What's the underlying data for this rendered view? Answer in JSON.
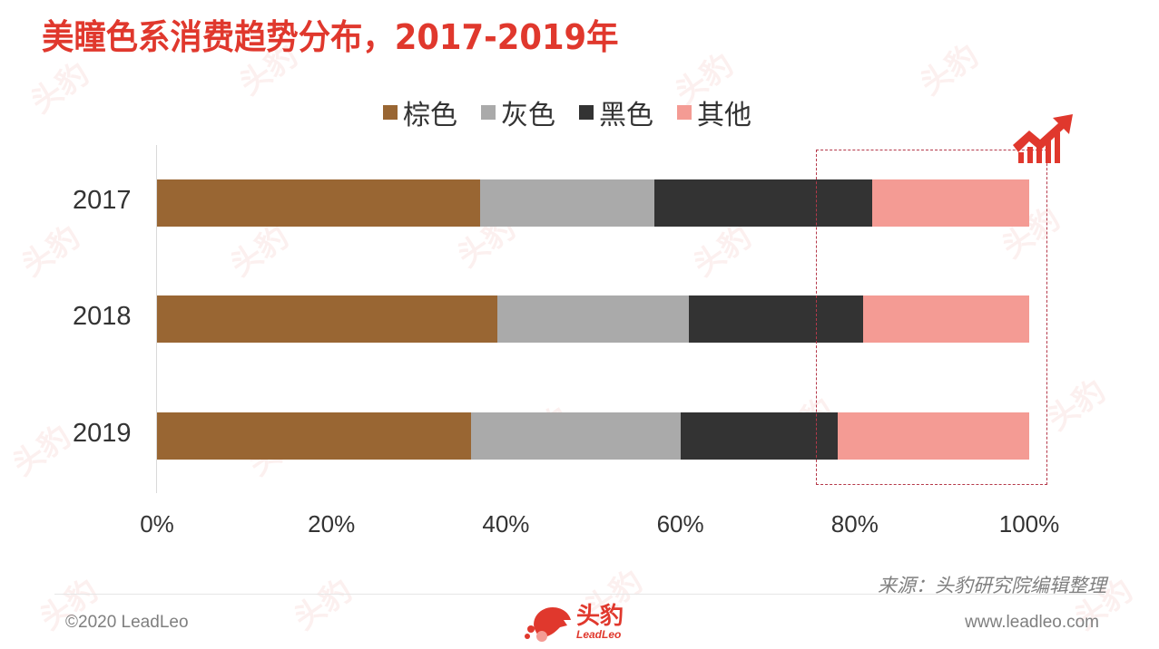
{
  "title": "美瞳色系消费趋势分布，2017-2019年",
  "legend": [
    {
      "label": "棕色",
      "color": "#996633"
    },
    {
      "label": "灰色",
      "color": "#aaaaaa"
    },
    {
      "label": "黑色",
      "color": "#333333"
    },
    {
      "label": "其他",
      "color": "#f49b94"
    }
  ],
  "x_ticks": [
    "0%",
    "20%",
    "40%",
    "60%",
    "80%",
    "100%"
  ],
  "years": [
    "2017",
    "2018",
    "2019"
  ],
  "source": "来源：头豹研究院编辑整理",
  "footer": {
    "copyright": "©2020 LeadLeo",
    "website": "www.leadleo.com",
    "logo_cn": "头豹",
    "logo_en": "LeadLeo"
  },
  "watermark_text": "头豹",
  "icons": {
    "trend": "trend-up-chart-icon",
    "logo": "leopard-logo-icon"
  },
  "colors": {
    "title": "#e0382d",
    "highlight_border": "#b5394a"
  },
  "chart_data": {
    "type": "bar",
    "orientation": "horizontal",
    "stacked": "percent",
    "title": "美瞳色系消费趋势分布，2017-2019年",
    "categories": [
      "2017",
      "2018",
      "2019"
    ],
    "series": [
      {
        "name": "棕色",
        "color": "#996633",
        "values": [
          37,
          39,
          36
        ]
      },
      {
        "name": "灰色",
        "color": "#aaaaaa",
        "values": [
          20,
          22,
          24
        ]
      },
      {
        "name": "黑色",
        "color": "#333333",
        "values": [
          25,
          20,
          18
        ]
      },
      {
        "name": "其他",
        "color": "#f49b94",
        "values": [
          18,
          19,
          22
        ]
      }
    ],
    "xlabel": "",
    "ylabel": "",
    "xlim": [
      0,
      100
    ],
    "x_tick_labels": [
      "0%",
      "20%",
      "40%",
      "60%",
      "80%",
      "100%"
    ],
    "grid": false,
    "legend_position": "top",
    "annotation": "dashed highlight box around 80%-100% region with upward trend icon"
  }
}
